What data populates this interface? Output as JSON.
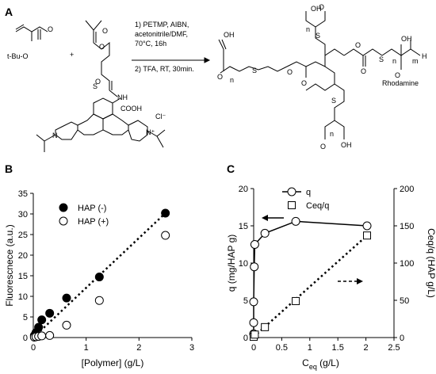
{
  "panels": {
    "a": "A",
    "b": "B",
    "c": "C"
  },
  "scheme": {
    "reactant_1": "t-Bu-O",
    "plus": "+",
    "conditions": [
      "1) PETMP, AIBN,",
      "acetonitrile/DMF,",
      "70°C, 16h",
      "2) TFA, RT, 30min."
    ],
    "labels": {
      "nh": "NH",
      "cooh": "COOH",
      "cl": "Cl⁻",
      "oh": "OH",
      "o": "O",
      "s": "S",
      "n": "n",
      "h": "H",
      "m": "m",
      "rhodamine": "Rhodamine",
      "n_plus": "N⁺",
      "n_atom": "N"
    }
  },
  "colors": {
    "filled": "#000000",
    "open": "#ffffff"
  },
  "chart_data": [
    {
      "type": "scatter",
      "xlabel": "[Polymer] (g/L)",
      "ylabel": "Fluorescnece (a.u.)",
      "xlim": [
        0,
        3
      ],
      "ylim": [
        0,
        35
      ],
      "xticks": [
        "0",
        "1",
        "2",
        "3"
      ],
      "yticks": [
        "0",
        "5",
        "10",
        "15",
        "20",
        "25",
        "30",
        "35"
      ],
      "legend_position": "top-left",
      "series": [
        {
          "name": "HAP (-)",
          "marker": "filled-circle",
          "x": [
            0.02,
            0.05,
            0.1,
            0.16,
            0.31,
            0.63,
            1.25,
            2.5
          ],
          "y": [
            0.5,
            1.2,
            2.5,
            4.3,
            5.9,
            9.6,
            14.7,
            30.2
          ]
        },
        {
          "name": "HAP (+)",
          "marker": "open-circle",
          "x": [
            0.02,
            0.05,
            0.1,
            0.16,
            0.31,
            0.63,
            1.25,
            2.5
          ],
          "y": [
            0.1,
            0.2,
            0.3,
            0.4,
            0.5,
            3.0,
            9.0,
            24.8
          ]
        }
      ],
      "trendline": {
        "style": "dotted",
        "from": [
          0,
          0
        ],
        "to": [
          2.5,
          30.2
        ]
      }
    },
    {
      "type": "line",
      "xlabel": "C",
      "xlabel_sub": "eq",
      "xlabel_unit": " (g/L)",
      "ylabel": "q (mg/HAP g)",
      "ylabel_right": "Ceq/q (HAP g/L)",
      "xlim": [
        0,
        2.5
      ],
      "ylim": [
        0,
        20
      ],
      "ylim_right": [
        0,
        200
      ],
      "xticks": [
        "0",
        "0.5",
        "1",
        "1.5",
        "2",
        "2.5"
      ],
      "yticks": [
        "0",
        "5",
        "10",
        "15",
        "20"
      ],
      "yticks_right": [
        "0",
        "50",
        "100",
        "150",
        "200"
      ],
      "legend_position": "top",
      "series": [
        {
          "name": "q",
          "axis": "left",
          "marker": "open-circle",
          "line": "solid",
          "x": [
            0.0,
            0.0,
            0.0,
            0.01,
            0.02,
            0.2,
            0.75,
            2.02
          ],
          "y": [
            0.5,
            2.0,
            4.8,
            9.5,
            12.5,
            14.0,
            15.6,
            15.0
          ]
        },
        {
          "name": "Ceq/q",
          "axis": "right",
          "marker": "open-square",
          "line": "dotted",
          "x": [
            0.0,
            0.02,
            0.2,
            0.75,
            2.02
          ],
          "y": [
            1,
            4,
            14,
            49,
            137
          ]
        }
      ]
    }
  ]
}
